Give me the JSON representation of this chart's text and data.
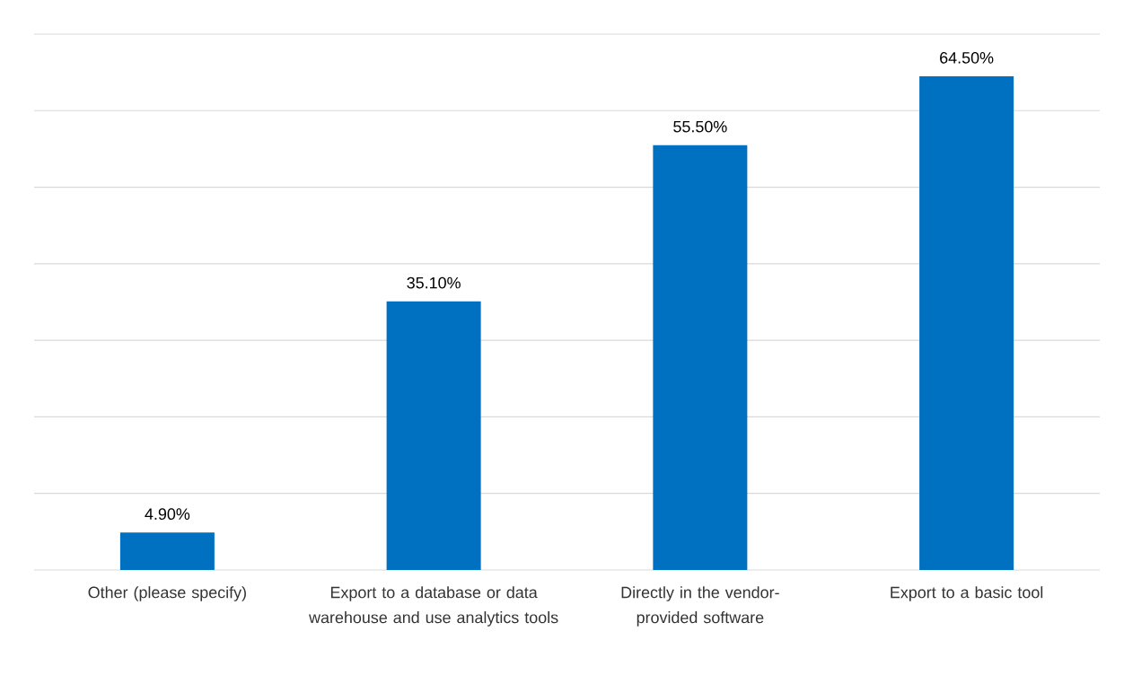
{
  "chart_data": {
    "type": "bar",
    "categories": [
      "Other (please specify)",
      "Export to a database or data warehouse and use analytics tools",
      "Directly in the vendor-provided software",
      "Export to a basic tool"
    ],
    "values": [
      4.9,
      35.1,
      55.5,
      64.5
    ],
    "value_labels": [
      "4.90%",
      "35.10%",
      "55.50%",
      "64.50%"
    ],
    "color": "#0070c0",
    "ylim": [
      0,
      70
    ],
    "yticks": [
      {
        "value": 0,
        "label": null
      },
      {
        "value": 10,
        "label": null
      },
      {
        "value": 20,
        "label": null
      },
      {
        "value": 30,
        "label": null
      },
      {
        "value": 40,
        "label": null
      },
      {
        "value": 50,
        "label": null
      },
      {
        "value": 60,
        "label": null
      },
      {
        "value": 70,
        "label": null
      }
    ],
    "grid": "y",
    "tick_labels": "x"
  }
}
